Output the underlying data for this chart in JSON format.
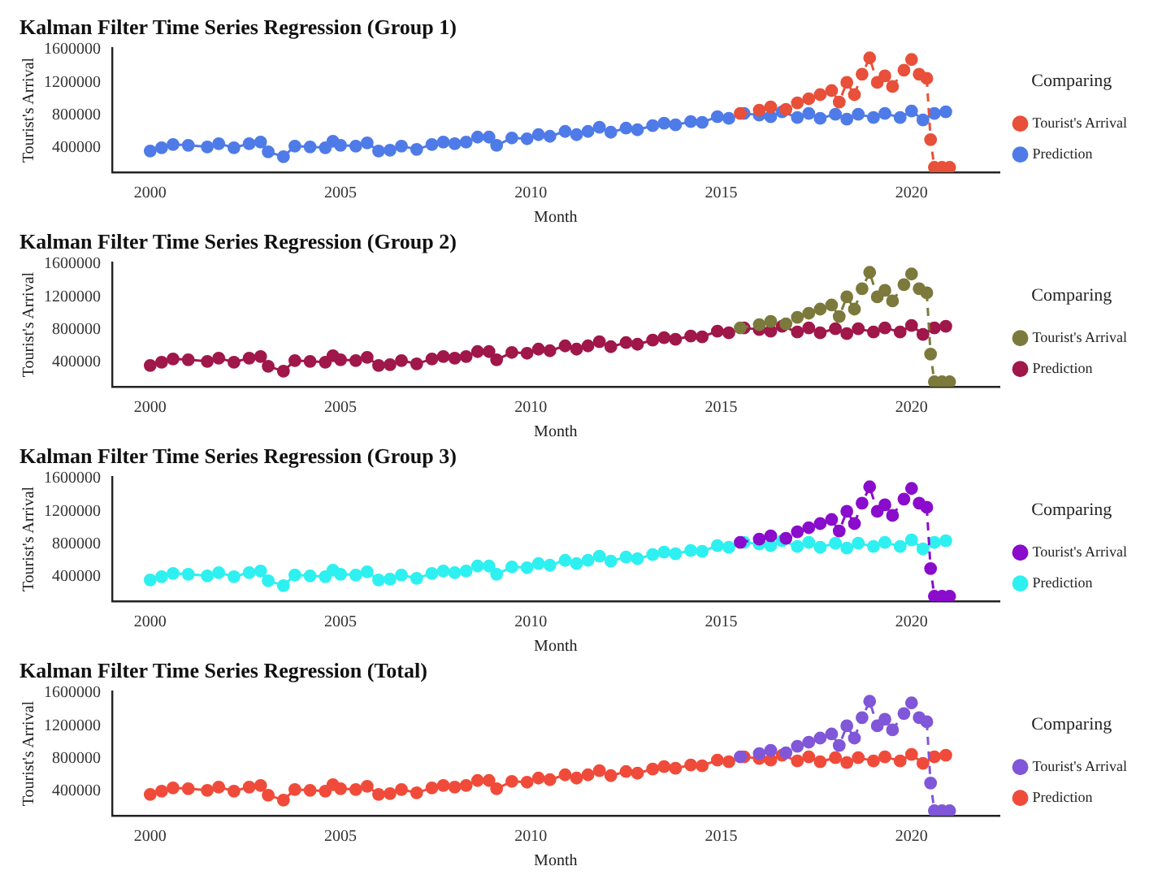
{
  "chart_data": [
    {
      "type": "line",
      "title": "Kalman Filter Time Series Regression (Group 1)",
      "xlabel": "Month",
      "ylabel": "Tourist's Arrival",
      "legend_title": "Comparing",
      "legend": "right",
      "marker": "circle",
      "grid": false,
      "xlim": [
        1999,
        2022.3
      ],
      "xticks": [
        2000,
        2005,
        2010,
        2015,
        2020
      ],
      "ylim": [
        100000,
        1620000
      ],
      "yticks": [
        400000,
        800000,
        1200000,
        1600000
      ],
      "series": [
        {
          "name": "Tourist's Arrival",
          "color": "#e8503a",
          "line_style": "dashed",
          "x": [
            2015.5,
            2016,
            2016.3,
            2016.7,
            2017,
            2017.3,
            2017.6,
            2017.9,
            2018.1,
            2018.3,
            2018.5,
            2018.7,
            2018.9,
            2019.1,
            2019.3,
            2019.5,
            2019.8,
            2020,
            2020.2,
            2020.4,
            2020.5,
            2020.6,
            2020.8,
            2021
          ],
          "values": [
            820000,
            860000,
            900000,
            870000,
            950000,
            1000000,
            1050000,
            1100000,
            960000,
            1200000,
            1050000,
            1300000,
            1500000,
            1200000,
            1280000,
            1150000,
            1350000,
            1480000,
            1300000,
            1250000,
            500000,
            160000,
            160000,
            160000
          ]
        },
        {
          "name": "Prediction",
          "color": "#4f7be8",
          "line_style": "solid",
          "x": [
            2000,
            2000.3,
            2000.6,
            2001,
            2001.5,
            2001.8,
            2002.2,
            2002.6,
            2002.9,
            2003.1,
            2003.5,
            2003.8,
            2004.2,
            2004.6,
            2004.8,
            2005,
            2005.4,
            2005.7,
            2006,
            2006.3,
            2006.6,
            2007,
            2007.4,
            2007.7,
            2008,
            2008.3,
            2008.6,
            2008.9,
            2009.1,
            2009.5,
            2009.9,
            2010.2,
            2010.5,
            2010.9,
            2011.2,
            2011.5,
            2011.8,
            2012.1,
            2012.5,
            2012.8,
            2013.2,
            2013.5,
            2013.8,
            2014.2,
            2014.5,
            2014.9,
            2015.2,
            2015.6,
            2016,
            2016.3,
            2016.6,
            2017,
            2017.3,
            2017.6,
            2018,
            2018.3,
            2018.6,
            2019,
            2019.3,
            2019.7,
            2020,
            2020.3,
            2020.6,
            2020.9
          ],
          "values": [
            360000,
            400000,
            440000,
            430000,
            410000,
            450000,
            400000,
            450000,
            470000,
            350000,
            290000,
            420000,
            410000,
            400000,
            480000,
            430000,
            420000,
            460000,
            360000,
            370000,
            420000,
            380000,
            440000,
            470000,
            450000,
            470000,
            530000,
            530000,
            430000,
            520000,
            510000,
            560000,
            540000,
            600000,
            560000,
            600000,
            650000,
            590000,
            640000,
            620000,
            670000,
            700000,
            680000,
            720000,
            710000,
            780000,
            760000,
            820000,
            800000,
            780000,
            840000,
            770000,
            820000,
            760000,
            810000,
            750000,
            810000,
            770000,
            820000,
            770000,
            850000,
            740000,
            820000,
            840000
          ]
        }
      ]
    },
    {
      "type": "line",
      "title": "Kalman Filter Time Series Regression (Group 2)",
      "xlabel": "Month",
      "ylabel": "Tourist's Arrival",
      "legend_title": "Comparing",
      "legend": "right",
      "marker": "circle",
      "grid": false,
      "xlim": [
        1999,
        2022.3
      ],
      "xticks": [
        2000,
        2005,
        2010,
        2015,
        2020
      ],
      "ylim": [
        100000,
        1620000
      ],
      "yticks": [
        400000,
        800000,
        1200000,
        1600000
      ],
      "series": [
        {
          "name": "Tourist's Arrival",
          "color": "#7b7a3c",
          "line_style": "dashed",
          "x": [
            2015.5,
            2016,
            2016.3,
            2016.7,
            2017,
            2017.3,
            2017.6,
            2017.9,
            2018.1,
            2018.3,
            2018.5,
            2018.7,
            2018.9,
            2019.1,
            2019.3,
            2019.5,
            2019.8,
            2020,
            2020.2,
            2020.4,
            2020.5,
            2020.6,
            2020.8,
            2021
          ],
          "values": [
            820000,
            860000,
            900000,
            870000,
            950000,
            1000000,
            1050000,
            1100000,
            960000,
            1200000,
            1050000,
            1300000,
            1500000,
            1200000,
            1280000,
            1150000,
            1350000,
            1480000,
            1300000,
            1250000,
            500000,
            160000,
            160000,
            160000
          ]
        },
        {
          "name": "Prediction",
          "color": "#a0174a",
          "line_style": "solid",
          "x": [
            2000,
            2000.3,
            2000.6,
            2001,
            2001.5,
            2001.8,
            2002.2,
            2002.6,
            2002.9,
            2003.1,
            2003.5,
            2003.8,
            2004.2,
            2004.6,
            2004.8,
            2005,
            2005.4,
            2005.7,
            2006,
            2006.3,
            2006.6,
            2007,
            2007.4,
            2007.7,
            2008,
            2008.3,
            2008.6,
            2008.9,
            2009.1,
            2009.5,
            2009.9,
            2010.2,
            2010.5,
            2010.9,
            2011.2,
            2011.5,
            2011.8,
            2012.1,
            2012.5,
            2012.8,
            2013.2,
            2013.5,
            2013.8,
            2014.2,
            2014.5,
            2014.9,
            2015.2,
            2015.6,
            2016,
            2016.3,
            2016.6,
            2017,
            2017.3,
            2017.6,
            2018,
            2018.3,
            2018.6,
            2019,
            2019.3,
            2019.7,
            2020,
            2020.3,
            2020.6,
            2020.9
          ],
          "values": [
            360000,
            400000,
            440000,
            430000,
            410000,
            450000,
            400000,
            450000,
            470000,
            350000,
            290000,
            420000,
            410000,
            400000,
            480000,
            430000,
            420000,
            460000,
            360000,
            370000,
            420000,
            380000,
            440000,
            470000,
            450000,
            470000,
            530000,
            530000,
            430000,
            520000,
            510000,
            560000,
            540000,
            600000,
            560000,
            600000,
            650000,
            590000,
            640000,
            620000,
            670000,
            700000,
            680000,
            720000,
            710000,
            780000,
            760000,
            820000,
            800000,
            780000,
            840000,
            770000,
            820000,
            760000,
            810000,
            750000,
            810000,
            770000,
            820000,
            770000,
            850000,
            740000,
            820000,
            840000
          ]
        }
      ]
    },
    {
      "type": "line",
      "title": "Kalman Filter Time Series Regression (Group 3)",
      "xlabel": "Month",
      "ylabel": "Tourist's Arrival",
      "legend_title": "Comparing",
      "legend": "right",
      "marker": "circle",
      "grid": false,
      "xlim": [
        1999,
        2022.3
      ],
      "xticks": [
        2000,
        2005,
        2010,
        2015,
        2020
      ],
      "ylim": [
        100000,
        1620000
      ],
      "yticks": [
        400000,
        800000,
        1200000,
        1600000
      ],
      "series": [
        {
          "name": "Tourist's Arrival",
          "color": "#8a0ccc",
          "line_style": "dashed",
          "x": [
            2015.5,
            2016,
            2016.3,
            2016.7,
            2017,
            2017.3,
            2017.6,
            2017.9,
            2018.1,
            2018.3,
            2018.5,
            2018.7,
            2018.9,
            2019.1,
            2019.3,
            2019.5,
            2019.8,
            2020,
            2020.2,
            2020.4,
            2020.5,
            2020.6,
            2020.8,
            2021
          ],
          "values": [
            820000,
            860000,
            900000,
            870000,
            950000,
            1000000,
            1050000,
            1100000,
            960000,
            1200000,
            1050000,
            1300000,
            1500000,
            1200000,
            1280000,
            1150000,
            1350000,
            1480000,
            1300000,
            1250000,
            500000,
            160000,
            160000,
            160000
          ]
        },
        {
          "name": "Prediction",
          "color": "#2ef0f0",
          "line_style": "solid",
          "x": [
            2000,
            2000.3,
            2000.6,
            2001,
            2001.5,
            2001.8,
            2002.2,
            2002.6,
            2002.9,
            2003.1,
            2003.5,
            2003.8,
            2004.2,
            2004.6,
            2004.8,
            2005,
            2005.4,
            2005.7,
            2006,
            2006.3,
            2006.6,
            2007,
            2007.4,
            2007.7,
            2008,
            2008.3,
            2008.6,
            2008.9,
            2009.1,
            2009.5,
            2009.9,
            2010.2,
            2010.5,
            2010.9,
            2011.2,
            2011.5,
            2011.8,
            2012.1,
            2012.5,
            2012.8,
            2013.2,
            2013.5,
            2013.8,
            2014.2,
            2014.5,
            2014.9,
            2015.2,
            2015.6,
            2016,
            2016.3,
            2016.6,
            2017,
            2017.3,
            2017.6,
            2018,
            2018.3,
            2018.6,
            2019,
            2019.3,
            2019.7,
            2020,
            2020.3,
            2020.6,
            2020.9
          ],
          "values": [
            360000,
            400000,
            440000,
            430000,
            410000,
            450000,
            400000,
            450000,
            470000,
            350000,
            290000,
            420000,
            410000,
            400000,
            480000,
            430000,
            420000,
            460000,
            360000,
            370000,
            420000,
            380000,
            440000,
            470000,
            450000,
            470000,
            530000,
            530000,
            430000,
            520000,
            510000,
            560000,
            540000,
            600000,
            560000,
            600000,
            650000,
            590000,
            640000,
            620000,
            670000,
            700000,
            680000,
            720000,
            710000,
            780000,
            760000,
            820000,
            800000,
            780000,
            840000,
            770000,
            820000,
            760000,
            810000,
            750000,
            810000,
            770000,
            820000,
            770000,
            850000,
            740000,
            820000,
            840000
          ]
        }
      ]
    },
    {
      "type": "line",
      "title": "Kalman Filter Time Series Regression (Total)",
      "xlabel": "Month",
      "ylabel": "Tourist's Arrival",
      "legend_title": "Comparing",
      "legend": "right",
      "marker": "circle",
      "grid": false,
      "xlim": [
        1999,
        2022.3
      ],
      "xticks": [
        2000,
        2005,
        2010,
        2015,
        2020
      ],
      "ylim": [
        100000,
        1620000
      ],
      "yticks": [
        400000,
        800000,
        1200000,
        1600000
      ],
      "series": [
        {
          "name": "Tourist's Arrival",
          "color": "#8057d8",
          "line_style": "dashed",
          "x": [
            2015.5,
            2016,
            2016.3,
            2016.7,
            2017,
            2017.3,
            2017.6,
            2017.9,
            2018.1,
            2018.3,
            2018.5,
            2018.7,
            2018.9,
            2019.1,
            2019.3,
            2019.5,
            2019.8,
            2020,
            2020.2,
            2020.4,
            2020.5,
            2020.6,
            2020.8,
            2021
          ],
          "values": [
            820000,
            860000,
            900000,
            870000,
            950000,
            1000000,
            1050000,
            1100000,
            960000,
            1200000,
            1050000,
            1300000,
            1500000,
            1200000,
            1280000,
            1150000,
            1350000,
            1480000,
            1300000,
            1250000,
            500000,
            160000,
            160000,
            160000
          ]
        },
        {
          "name": "Prediction",
          "color": "#f04b3a",
          "line_style": "solid",
          "x": [
            2000,
            2000.3,
            2000.6,
            2001,
            2001.5,
            2001.8,
            2002.2,
            2002.6,
            2002.9,
            2003.1,
            2003.5,
            2003.8,
            2004.2,
            2004.6,
            2004.8,
            2005,
            2005.4,
            2005.7,
            2006,
            2006.3,
            2006.6,
            2007,
            2007.4,
            2007.7,
            2008,
            2008.3,
            2008.6,
            2008.9,
            2009.1,
            2009.5,
            2009.9,
            2010.2,
            2010.5,
            2010.9,
            2011.2,
            2011.5,
            2011.8,
            2012.1,
            2012.5,
            2012.8,
            2013.2,
            2013.5,
            2013.8,
            2014.2,
            2014.5,
            2014.9,
            2015.2,
            2015.6,
            2016,
            2016.3,
            2016.6,
            2017,
            2017.3,
            2017.6,
            2018,
            2018.3,
            2018.6,
            2019,
            2019.3,
            2019.7,
            2020,
            2020.3,
            2020.6,
            2020.9
          ],
          "values": [
            360000,
            400000,
            440000,
            430000,
            410000,
            450000,
            400000,
            450000,
            470000,
            350000,
            290000,
            420000,
            410000,
            400000,
            480000,
            430000,
            420000,
            460000,
            360000,
            370000,
            420000,
            380000,
            440000,
            470000,
            450000,
            470000,
            530000,
            530000,
            430000,
            520000,
            510000,
            560000,
            540000,
            600000,
            560000,
            600000,
            650000,
            590000,
            640000,
            620000,
            670000,
            700000,
            680000,
            720000,
            710000,
            780000,
            760000,
            820000,
            800000,
            780000,
            840000,
            770000,
            820000,
            760000,
            810000,
            750000,
            810000,
            770000,
            820000,
            770000,
            850000,
            740000,
            820000,
            840000
          ]
        }
      ]
    }
  ]
}
